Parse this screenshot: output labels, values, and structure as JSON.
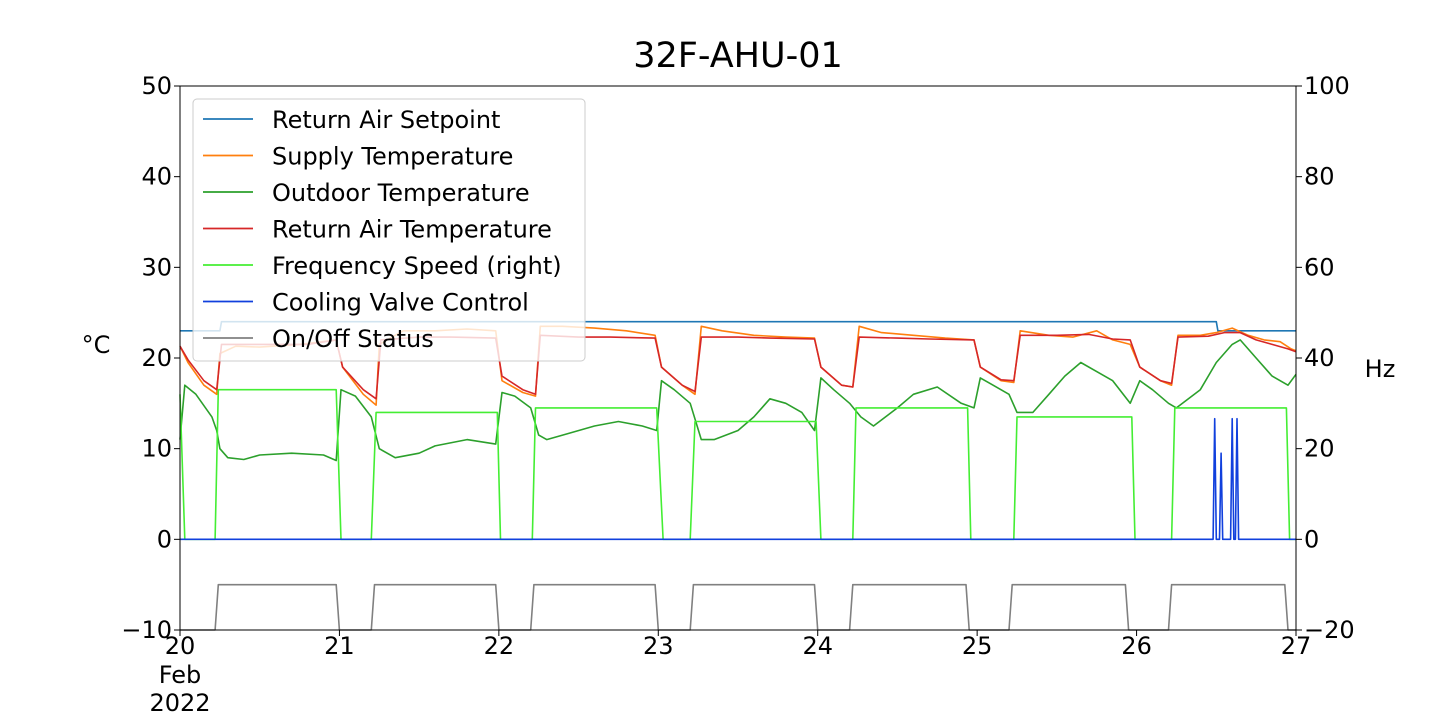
{
  "chart_data": {
    "type": "line",
    "title": "32F-AHU-01",
    "ylabel_left": "°C",
    "ylabel_right": "Hz",
    "x_tick_labels": [
      "20",
      "21",
      "22",
      "23",
      "24",
      "25",
      "26",
      "27"
    ],
    "x_tick_values": [
      20,
      21,
      22,
      23,
      24,
      25,
      26,
      27
    ],
    "x_sublabels": [
      "Feb",
      "2022"
    ],
    "xlim": [
      20,
      27
    ],
    "ylim_left": [
      -10,
      50
    ],
    "ylim_right": [
      -20,
      100
    ],
    "y_ticks_left": [
      -10,
      0,
      10,
      20,
      30,
      40,
      50
    ],
    "y_ticks_right": [
      -20,
      0,
      20,
      40,
      60,
      80,
      100
    ],
    "y_tick_labels_left": [
      "−10",
      "0",
      "10",
      "20",
      "30",
      "40",
      "50"
    ],
    "y_tick_labels_right": [
      "−20",
      "0",
      "20",
      "40",
      "60",
      "80",
      "100"
    ],
    "grid": false,
    "legend_position": "top-left",
    "legend": [
      {
        "label": "Return Air Setpoint",
        "color": "#1f77b4"
      },
      {
        "label": "Supply Temperature",
        "color": "#ff7f0e"
      },
      {
        "label": "Outdoor Temperature",
        "color": "#2ca02c"
      },
      {
        "label": "Return Air Temperature",
        "color": "#d62728"
      },
      {
        "label": "Frequency Speed (right)",
        "color": "#44ee33"
      },
      {
        "label": "Cooling Valve Control",
        "color": "#1140dd"
      },
      {
        "label": "On/Off Status",
        "color": "#808080"
      }
    ],
    "series": [
      {
        "name": "Return Air Setpoint",
        "axis": "left",
        "color": "#1f77b4",
        "points": [
          [
            20,
            23
          ],
          [
            20.25,
            23
          ],
          [
            20.26,
            24
          ],
          [
            26.5,
            24
          ],
          [
            26.51,
            23
          ],
          [
            27,
            23
          ]
        ]
      },
      {
        "name": "Supply Temperature",
        "axis": "left",
        "color": "#ff7f0e",
        "points": [
          [
            20,
            21.3
          ],
          [
            20.05,
            19.5
          ],
          [
            20.15,
            17
          ],
          [
            20.23,
            16
          ],
          [
            20.25,
            20.5
          ],
          [
            20.35,
            21.3
          ],
          [
            20.5,
            21.2
          ],
          [
            20.75,
            21.5
          ],
          [
            20.98,
            22
          ],
          [
            21.02,
            19
          ],
          [
            21.15,
            16
          ],
          [
            21.23,
            14.8
          ],
          [
            21.25,
            21.5
          ],
          [
            21.4,
            23
          ],
          [
            21.6,
            23
          ],
          [
            21.8,
            23.2
          ],
          [
            21.98,
            23
          ],
          [
            22.02,
            17.5
          ],
          [
            22.15,
            16.2
          ],
          [
            22.23,
            15.8
          ],
          [
            22.26,
            23.5
          ],
          [
            22.4,
            23.5
          ],
          [
            22.6,
            23.3
          ],
          [
            22.8,
            23
          ],
          [
            22.98,
            22.5
          ],
          [
            23.02,
            19
          ],
          [
            23.15,
            17
          ],
          [
            23.23,
            16
          ],
          [
            23.27,
            23.5
          ],
          [
            23.4,
            23
          ],
          [
            23.6,
            22.5
          ],
          [
            23.8,
            22.3
          ],
          [
            23.98,
            22.2
          ],
          [
            24.02,
            19
          ],
          [
            24.15,
            17
          ],
          [
            24.22,
            16.8
          ],
          [
            24.26,
            23.5
          ],
          [
            24.4,
            22.8
          ],
          [
            24.6,
            22.5
          ],
          [
            24.8,
            22.2
          ],
          [
            24.98,
            22
          ],
          [
            25.02,
            19
          ],
          [
            25.15,
            17.5
          ],
          [
            25.23,
            17.3
          ],
          [
            25.27,
            23
          ],
          [
            25.45,
            22.5
          ],
          [
            25.6,
            22.3
          ],
          [
            25.75,
            23
          ],
          [
            25.85,
            22
          ],
          [
            25.96,
            21.5
          ],
          [
            26.02,
            19
          ],
          [
            26.15,
            17.5
          ],
          [
            26.22,
            17
          ],
          [
            26.26,
            22.5
          ],
          [
            26.4,
            22.5
          ],
          [
            26.5,
            22.8
          ],
          [
            26.6,
            23.3
          ],
          [
            26.7,
            22.5
          ],
          [
            26.8,
            22
          ],
          [
            26.9,
            21.8
          ],
          [
            26.97,
            21
          ],
          [
            27,
            20.8
          ]
        ]
      },
      {
        "name": "Outdoor Temperature",
        "axis": "left",
        "color": "#2ca02c",
        "points": [
          [
            20,
            11
          ],
          [
            20.03,
            17
          ],
          [
            20.1,
            16
          ],
          [
            20.2,
            13.5
          ],
          [
            20.23,
            12
          ],
          [
            20.25,
            10
          ],
          [
            20.3,
            9
          ],
          [
            20.4,
            8.8
          ],
          [
            20.5,
            9.3
          ],
          [
            20.7,
            9.5
          ],
          [
            20.9,
            9.3
          ],
          [
            20.98,
            8.7
          ],
          [
            21.01,
            16.5
          ],
          [
            21.1,
            15.8
          ],
          [
            21.2,
            13.5
          ],
          [
            21.25,
            10
          ],
          [
            21.35,
            9
          ],
          [
            21.5,
            9.5
          ],
          [
            21.6,
            10.3
          ],
          [
            21.8,
            11
          ],
          [
            21.98,
            10.5
          ],
          [
            22.02,
            16.2
          ],
          [
            22.1,
            15.8
          ],
          [
            22.2,
            14.5
          ],
          [
            22.25,
            11.5
          ],
          [
            22.3,
            11
          ],
          [
            22.4,
            11.5
          ],
          [
            22.6,
            12.5
          ],
          [
            22.75,
            13
          ],
          [
            22.9,
            12.5
          ],
          [
            22.99,
            12
          ],
          [
            23.02,
            17.5
          ],
          [
            23.1,
            16.5
          ],
          [
            23.2,
            15
          ],
          [
            23.27,
            11
          ],
          [
            23.35,
            11
          ],
          [
            23.5,
            12
          ],
          [
            23.6,
            13.5
          ],
          [
            23.7,
            15.5
          ],
          [
            23.8,
            15
          ],
          [
            23.9,
            14
          ],
          [
            23.98,
            12
          ],
          [
            24.02,
            17.8
          ],
          [
            24.1,
            16.5
          ],
          [
            24.2,
            15
          ],
          [
            24.27,
            13.5
          ],
          [
            24.35,
            12.5
          ],
          [
            24.5,
            14.5
          ],
          [
            24.6,
            16
          ],
          [
            24.75,
            16.8
          ],
          [
            24.9,
            15
          ],
          [
            24.98,
            14.5
          ],
          [
            25.02,
            17.8
          ],
          [
            25.1,
            17
          ],
          [
            25.2,
            16
          ],
          [
            25.25,
            14
          ],
          [
            25.35,
            14
          ],
          [
            25.45,
            16
          ],
          [
            25.55,
            18
          ],
          [
            25.65,
            19.5
          ],
          [
            25.75,
            18.5
          ],
          [
            25.85,
            17.5
          ],
          [
            25.96,
            15
          ],
          [
            26.02,
            17.5
          ],
          [
            26.1,
            16.5
          ],
          [
            26.2,
            15
          ],
          [
            26.25,
            14.5
          ],
          [
            26.4,
            16.5
          ],
          [
            26.5,
            19.5
          ],
          [
            26.6,
            21.5
          ],
          [
            26.65,
            22
          ],
          [
            26.75,
            20
          ],
          [
            26.85,
            18
          ],
          [
            26.95,
            17
          ],
          [
            27,
            18.2
          ]
        ]
      },
      {
        "name": "Return Air Temperature",
        "axis": "left",
        "color": "#d62728",
        "points": [
          [
            20,
            21.3
          ],
          [
            20.05,
            19.8
          ],
          [
            20.15,
            17.5
          ],
          [
            20.23,
            16.5
          ],
          [
            20.26,
            21.5
          ],
          [
            20.4,
            21.5
          ],
          [
            20.6,
            21.5
          ],
          [
            20.8,
            21.5
          ],
          [
            20.98,
            22
          ],
          [
            21.02,
            19
          ],
          [
            21.15,
            16.5
          ],
          [
            21.23,
            15.5
          ],
          [
            21.26,
            22
          ],
          [
            21.5,
            22.3
          ],
          [
            21.7,
            22.3
          ],
          [
            21.98,
            22.2
          ],
          [
            22.02,
            18
          ],
          [
            22.15,
            16.5
          ],
          [
            22.23,
            16
          ],
          [
            22.26,
            22.5
          ],
          [
            22.5,
            22.3
          ],
          [
            22.7,
            22.3
          ],
          [
            22.98,
            22.2
          ],
          [
            23.02,
            19
          ],
          [
            23.15,
            17
          ],
          [
            23.23,
            16.3
          ],
          [
            23.27,
            22.3
          ],
          [
            23.5,
            22.3
          ],
          [
            23.7,
            22.2
          ],
          [
            23.98,
            22.1
          ],
          [
            24.02,
            19
          ],
          [
            24.15,
            17
          ],
          [
            24.22,
            16.8
          ],
          [
            24.26,
            22.3
          ],
          [
            24.5,
            22.2
          ],
          [
            24.7,
            22.1
          ],
          [
            24.98,
            22
          ],
          [
            25.02,
            19
          ],
          [
            25.15,
            17.6
          ],
          [
            25.23,
            17.5
          ],
          [
            25.27,
            22.5
          ],
          [
            25.5,
            22.5
          ],
          [
            25.7,
            22.6
          ],
          [
            25.85,
            22.1
          ],
          [
            25.96,
            22
          ],
          [
            26.02,
            19
          ],
          [
            26.15,
            17.5
          ],
          [
            26.22,
            17.2
          ],
          [
            26.26,
            22.3
          ],
          [
            26.45,
            22.4
          ],
          [
            26.55,
            22.8
          ],
          [
            26.65,
            22.8
          ],
          [
            26.75,
            22
          ],
          [
            26.85,
            21.5
          ],
          [
            26.95,
            21
          ],
          [
            27,
            20.7
          ]
        ]
      },
      {
        "name": "Frequency Speed (right)",
        "axis": "right",
        "color": "#44ee33",
        "points": [
          [
            20,
            32
          ],
          [
            20.03,
            0
          ],
          [
            20.22,
            0
          ],
          [
            20.24,
            33
          ],
          [
            20.98,
            33
          ],
          [
            21.01,
            0
          ],
          [
            21.2,
            0
          ],
          [
            21.23,
            28
          ],
          [
            21.99,
            28
          ],
          [
            22.01,
            0
          ],
          [
            22.21,
            0
          ],
          [
            22.23,
            29
          ],
          [
            22.99,
            29
          ],
          [
            23.03,
            0
          ],
          [
            23.2,
            0
          ],
          [
            23.23,
            26
          ],
          [
            23.99,
            26
          ],
          [
            24.02,
            0
          ],
          [
            24.22,
            0
          ],
          [
            24.24,
            29
          ],
          [
            24.94,
            29
          ],
          [
            24.96,
            0
          ],
          [
            25.23,
            0
          ],
          [
            25.25,
            27
          ],
          [
            25.97,
            27
          ],
          [
            25.99,
            0
          ],
          [
            26.22,
            0
          ],
          [
            26.24,
            29
          ],
          [
            26.94,
            29
          ],
          [
            26.96,
            0
          ],
          [
            27,
            0
          ]
        ]
      },
      {
        "name": "Cooling Valve Control",
        "axis": "left",
        "color": "#1140dd",
        "points": [
          [
            20,
            0
          ],
          [
            26.48,
            0
          ],
          [
            26.49,
            13.3
          ],
          [
            26.5,
            0
          ],
          [
            26.52,
            0
          ],
          [
            26.53,
            9.5
          ],
          [
            26.54,
            0
          ],
          [
            26.59,
            0
          ],
          [
            26.6,
            13.3
          ],
          [
            26.61,
            0
          ],
          [
            26.62,
            0
          ],
          [
            26.63,
            13.3
          ],
          [
            26.64,
            0
          ],
          [
            27,
            0
          ]
        ]
      },
      {
        "name": "On/Off Status",
        "axis": "left",
        "color": "#808080",
        "points": [
          [
            20,
            -10
          ],
          [
            20.22,
            -10
          ],
          [
            20.24,
            -5
          ],
          [
            20.98,
            -5
          ],
          [
            21.0,
            -10
          ],
          [
            21.2,
            -10
          ],
          [
            21.22,
            -5
          ],
          [
            21.98,
            -5
          ],
          [
            22.0,
            -10
          ],
          [
            22.2,
            -10
          ],
          [
            22.22,
            -5
          ],
          [
            22.98,
            -5
          ],
          [
            23.0,
            -10
          ],
          [
            23.2,
            -10
          ],
          [
            23.22,
            -5
          ],
          [
            23.98,
            -5
          ],
          [
            24.0,
            -10
          ],
          [
            24.2,
            -10
          ],
          [
            24.22,
            -5
          ],
          [
            24.93,
            -5
          ],
          [
            24.95,
            -10
          ],
          [
            25.2,
            -10
          ],
          [
            25.22,
            -5
          ],
          [
            25.93,
            -5
          ],
          [
            25.95,
            -10
          ],
          [
            26.2,
            -10
          ],
          [
            26.22,
            -5
          ],
          [
            26.93,
            -5
          ],
          [
            26.95,
            -10
          ],
          [
            27,
            -10
          ]
        ]
      }
    ]
  }
}
